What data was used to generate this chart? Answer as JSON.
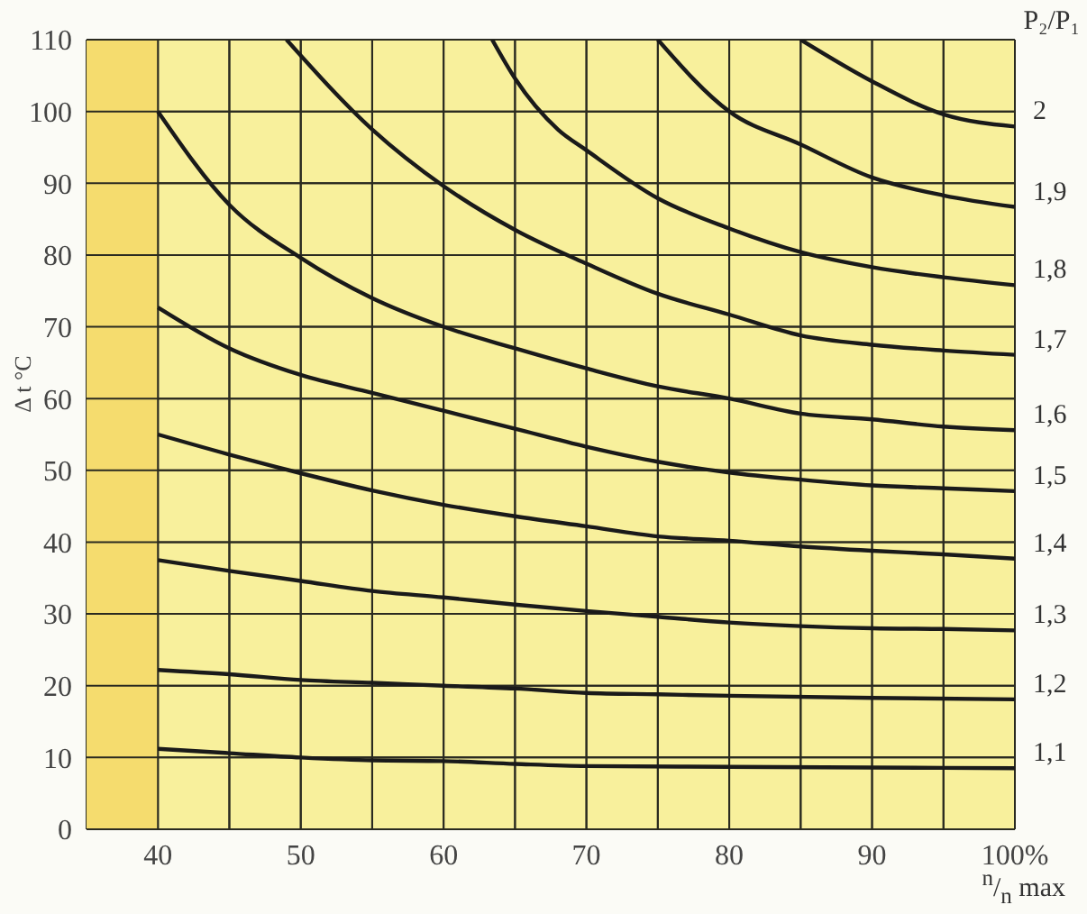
{
  "chart_data": {
    "type": "line",
    "xlabel": "$^{n}$/$_{n}$ max",
    "ylabel": "Δ t °C",
    "legend_title": "P₂/P₁",
    "xlim": [
      35,
      100
    ],
    "ylim": [
      0,
      110
    ],
    "xticks": [
      40,
      {
        "value": 45,
        "label": null
      },
      50,
      {
        "value": 55,
        "label": null
      },
      60,
      {
        "value": 65,
        "label": null
      },
      70,
      {
        "value": 75,
        "label": null
      },
      80,
      {
        "value": 85,
        "label": null
      },
      90,
      {
        "value": 95,
        "label": null
      },
      {
        "value": 100,
        "label": "100%"
      }
    ],
    "yticks": [
      0,
      10,
      20,
      30,
      40,
      50,
      60,
      70,
      80,
      90,
      100,
      110
    ],
    "grid": true,
    "marker": "none",
    "line_style": "solid",
    "bands": [
      {
        "axis": "x",
        "from": 35,
        "to": 40,
        "color": "#f5dc6e"
      }
    ],
    "series": [
      {
        "name": "1,1",
        "color": "#1a1a1a",
        "x": [
          40,
          45,
          50,
          55,
          60,
          65,
          70,
          80,
          90,
          100
        ],
        "values": [
          11.2,
          10.6,
          10,
          9.6,
          9.5,
          9.1,
          8.8,
          8.7,
          8.6,
          8.5
        ]
      },
      {
        "name": "1,2",
        "color": "#1a1a1a",
        "x": [
          40,
          45,
          50,
          55,
          60,
          65,
          70,
          75,
          80,
          90,
          100
        ],
        "values": [
          22.2,
          21.6,
          20.8,
          20.4,
          20,
          19.6,
          19,
          18.8,
          18.6,
          18.3,
          18.1
        ]
      },
      {
        "name": "1,3",
        "color": "#1a1a1a",
        "x": [
          40,
          45,
          50,
          55,
          60,
          65,
          70,
          75,
          80,
          85,
          90,
          95,
          100
        ],
        "values": [
          37.5,
          36,
          34.6,
          33.2,
          32.3,
          31.3,
          30.4,
          29.6,
          28.8,
          28.3,
          28,
          27.9,
          27.7
        ]
      },
      {
        "name": "1,4",
        "color": "#1a1a1a",
        "x": [
          40,
          45,
          50,
          55,
          60,
          65,
          70,
          75,
          80,
          85,
          90,
          95,
          100
        ],
        "values": [
          55,
          52.2,
          49.6,
          47.2,
          45.2,
          43.6,
          42.2,
          40.8,
          40.2,
          39.4,
          38.8,
          38.3,
          37.7
        ]
      },
      {
        "name": "1,5",
        "color": "#1a1a1a",
        "x": [
          40,
          45,
          50,
          55,
          60,
          65,
          70,
          75,
          80,
          85,
          90,
          95,
          100
        ],
        "values": [
          72.7,
          67,
          63.3,
          60.8,
          58.3,
          55.8,
          53.3,
          51.2,
          49.7,
          48.7,
          47.9,
          47.5,
          47.1
        ]
      },
      {
        "name": "1,6",
        "color": "#1a1a1a",
        "x": [
          40,
          45,
          50,
          55,
          60,
          65,
          70,
          75,
          80,
          85,
          90,
          95,
          100
        ],
        "values": [
          100,
          87,
          79.6,
          74,
          70,
          67,
          64.2,
          61.7,
          60,
          57.9,
          57.1,
          56.1,
          55.6
        ]
      },
      {
        "name": "1,7",
        "color": "#1a1a1a",
        "x": [
          49,
          55,
          60,
          65,
          70,
          75,
          80,
          85,
          90,
          95,
          100
        ],
        "values": [
          110,
          97.5,
          89.6,
          83.5,
          78.8,
          74.6,
          71.7,
          68.8,
          67.5,
          66.7,
          66.1
        ]
      },
      {
        "name": "1,8",
        "color": "#1a1a1a",
        "x": [
          63.4,
          65,
          68,
          70,
          75,
          80,
          85,
          90,
          95,
          100
        ],
        "values": [
          110,
          104.6,
          97.5,
          94.6,
          87.9,
          83.7,
          80.4,
          78.3,
          76.9,
          75.8
        ]
      },
      {
        "name": "1,9",
        "color": "#1a1a1a",
        "x": [
          75,
          80,
          85,
          90,
          95,
          100
        ],
        "values": [
          110,
          100,
          95.4,
          90.8,
          88.3,
          86.7
        ]
      },
      {
        "name": "2",
        "color": "#1a1a1a",
        "x": [
          85,
          90,
          95,
          100
        ],
        "values": [
          110,
          104.2,
          99.6,
          97.9
        ]
      }
    ]
  }
}
